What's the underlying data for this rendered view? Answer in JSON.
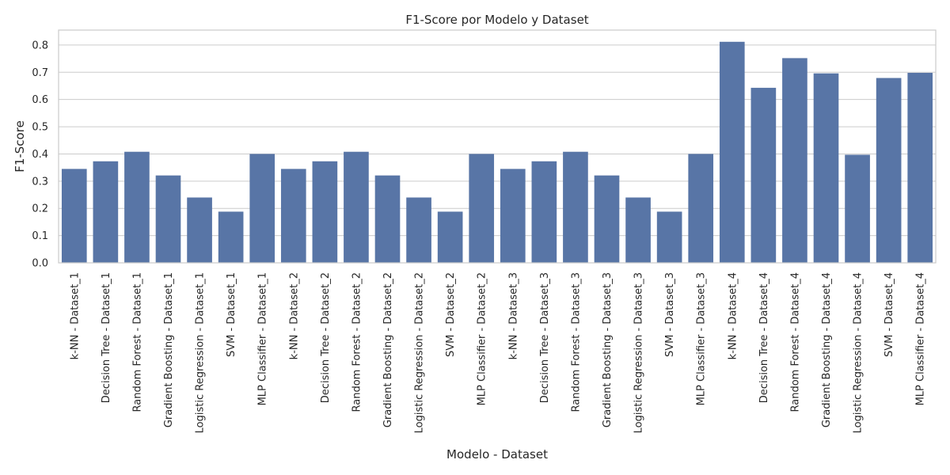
{
  "chart_data": {
    "type": "bar",
    "title": "F1-Score por Modelo y Dataset",
    "xlabel": "Modelo - Dataset",
    "ylabel": "F1-Score",
    "ylim": [
      0,
      0.855
    ],
    "yticks": [
      "0.0",
      "0.1",
      "0.2",
      "0.3",
      "0.4",
      "0.5",
      "0.6",
      "0.7",
      "0.8"
    ],
    "grid": true,
    "bar_color": "#5875a6",
    "categories": [
      "k-NN - Dataset_1",
      "Decision Tree - Dataset_1",
      "Random Forest - Dataset_1",
      "Gradient Boosting - Dataset_1",
      "Logistic Regression - Dataset_1",
      "SVM - Dataset_1",
      "MLP Classifier - Dataset_1",
      "k-NN - Dataset_2",
      "Decision Tree - Dataset_2",
      "Random Forest - Dataset_2",
      "Gradient Boosting - Dataset_2",
      "Logistic Regression - Dataset_2",
      "SVM - Dataset_2",
      "MLP Classifier - Dataset_2",
      "k-NN - Dataset_3",
      "Decision Tree - Dataset_3",
      "Random Forest - Dataset_3",
      "Gradient Boosting - Dataset_3",
      "Logistic Regression - Dataset_3",
      "SVM - Dataset_3",
      "MLP Classifier - Dataset_3",
      "k-NN - Dataset_4",
      "Decision Tree - Dataset_4",
      "Random Forest - Dataset_4",
      "Gradient Boosting - Dataset_4",
      "Logistic Regression - Dataset_4",
      "SVM - Dataset_4",
      "MLP Classifier - Dataset_4"
    ],
    "values": [
      0.345,
      0.373,
      0.408,
      0.321,
      0.24,
      0.188,
      0.4,
      0.345,
      0.373,
      0.408,
      0.321,
      0.24,
      0.188,
      0.4,
      0.345,
      0.373,
      0.408,
      0.321,
      0.24,
      0.188,
      0.4,
      0.812,
      0.643,
      0.752,
      0.696,
      0.397,
      0.679,
      0.698
    ]
  }
}
